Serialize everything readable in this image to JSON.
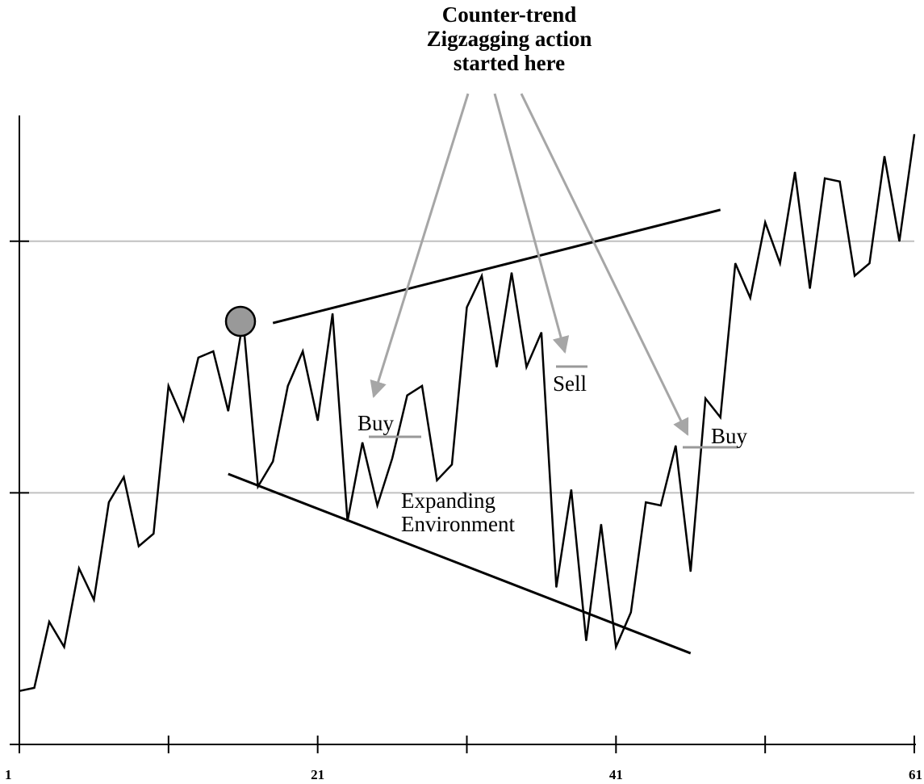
{
  "chart_data": {
    "type": "line",
    "title": "",
    "xlabel": "",
    "ylabel": "",
    "x_tick_labels": [
      "1",
      "21",
      "41",
      "61"
    ],
    "x_tick_values": [
      1,
      11,
      21,
      31,
      41,
      51,
      61
    ],
    "xlim": [
      1,
      61
    ],
    "ylim": [
      0,
      100
    ],
    "ygrid_values": [
      40,
      80
    ],
    "grid": false,
    "legend": "none",
    "series": [
      {
        "color": "#000000",
        "values": [
          8.5,
          9,
          19.5,
          15.5,
          28,
          23,
          38.5,
          42.5,
          31.5,
          33.5,
          57,
          51.5,
          61.5,
          62.5,
          53,
          67.5,
          41,
          45,
          57,
          62.5,
          51.5,
          68.5,
          35.5,
          48,
          38,
          45.5,
          55.5,
          57,
          42,
          44.5,
          69.5,
          74.5,
          60,
          75,
          60,
          65.5,
          25,
          40.5,
          16.5,
          35,
          15.5,
          21,
          38.5,
          38,
          47.5,
          27.5,
          55,
          52,
          76.5,
          71,
          83,
          76.5,
          91,
          72.5,
          90,
          89.5,
          74.5,
          76.5,
          93.5,
          80,
          97
        ]
      }
    ],
    "trendlines": [
      {
        "name": "upper",
        "from": [
          18,
          67
        ],
        "to": [
          48,
          85
        ]
      },
      {
        "name": "lower",
        "from": [
          15,
          43
        ],
        "to": [
          46,
          14.5
        ]
      }
    ],
    "marker": {
      "x": 16.5,
      "y": 67.5,
      "color": "#999999"
    },
    "annotations": {
      "headline": [
        "Counter-trend",
        "Zigzagging action",
        "started here"
      ],
      "expanding": [
        "Expanding",
        "Environment"
      ],
      "buy1": "Buy",
      "sell": "Sell",
      "buy2": "Buy"
    },
    "arrow_color": "#a6a6a6",
    "level_color": "#999999",
    "gridline_color": "#c0c0c0"
  }
}
